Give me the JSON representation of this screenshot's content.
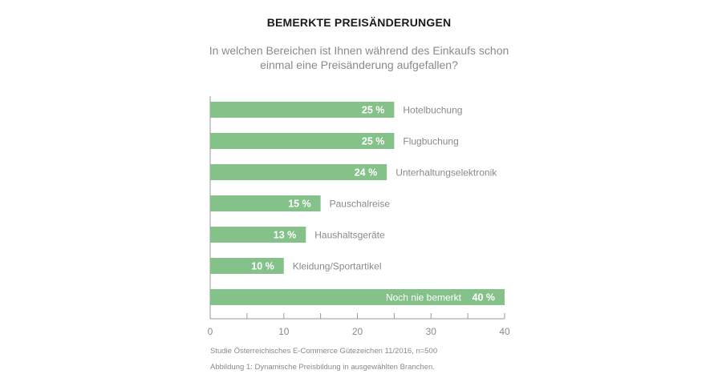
{
  "colors": {
    "bar": "#85c28a",
    "bar_label": "#ffffff",
    "category_label": "#8a8a8a",
    "axis": "#9a9a9a"
  },
  "chart_data": {
    "type": "bar",
    "orientation": "horizontal",
    "title": "BEMERKTE PREISÄNDERUNGEN",
    "subtitle_lines": [
      "In welchen Bereichen ist Ihnen während des Einkaufs schon",
      "einmal eine Preisänderung aufgefallen?"
    ],
    "categories": [
      "Hotelbuchung",
      "Flugbuchung",
      "Unterhaltungselektronik",
      "Pauschalreise",
      "Haushaltsgeräte",
      "Kleidung/Sportartikel",
      "Noch nie bemerkt"
    ],
    "values": [
      25,
      25,
      24,
      15,
      13,
      10,
      40
    ],
    "value_labels": [
      "25 %",
      "25 %",
      "24 %",
      "15 %",
      "13 %",
      "10 %",
      "40 %"
    ],
    "xlim": [
      0,
      40
    ],
    "xticks": [
      0,
      10,
      20,
      30,
      40
    ],
    "grid": false
  },
  "footer": {
    "source": "Studie Österreichisches E-Commerce Gütezeichen 11/2016, n=500",
    "caption": "Abbildung 1: Dynamische Preisbildung in ausgewählten Branchen."
  }
}
